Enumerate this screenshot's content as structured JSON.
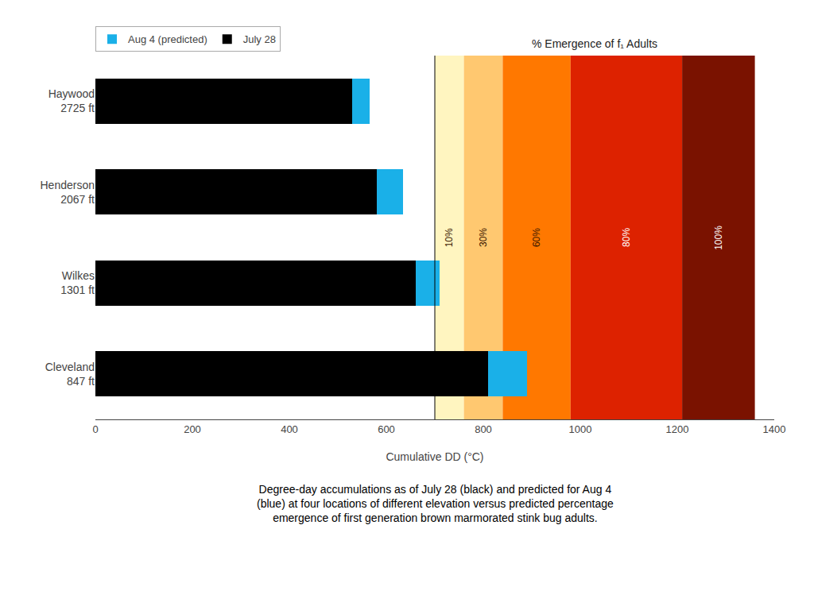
{
  "chart_data": {
    "type": "bar",
    "orientation": "horizontal",
    "stacked": true,
    "categories": [
      "Cleveland\n847 ft",
      "Wilkes\n1301 ft",
      "Henderson\n2067 ft",
      "Haywood\n2725 ft"
    ],
    "series": [
      {
        "name": "July 28",
        "color": "#000000",
        "values": [
          810,
          660,
          580,
          530
        ]
      },
      {
        "name": "Aug 4 (predicted)",
        "color": "#1ab0e8",
        "values": [
          80,
          50,
          55,
          35
        ]
      }
    ],
    "xlabel": "Cumulative DD (°C)",
    "xlim": [
      0,
      1400
    ],
    "xticks": [
      0,
      200,
      400,
      600,
      800,
      1000,
      1200,
      1400
    ],
    "grid": false,
    "legend": "upper left",
    "bands": [
      {
        "x_start": 700,
        "x_end": 760,
        "color": "#fff5c0",
        "label": "10%"
      },
      {
        "x_start": 760,
        "x_end": 840,
        "color": "#ffc870",
        "label": "30%"
      },
      {
        "x_start": 840,
        "x_end": 980,
        "color": "#ff7800",
        "label": "60%"
      },
      {
        "x_start": 980,
        "x_end": 1210,
        "color": "#dd2200",
        "label": "80%"
      },
      {
        "x_start": 1210,
        "x_end": 1360,
        "color": "#7a1200",
        "label": "100%"
      }
    ],
    "band_title": "% Emergence of f₁ Adults",
    "vline": 700,
    "caption": "Degree-day accumulations as of July 28 (black) and predicted for Aug 4\n(blue) at four locations of different elevation versus predicted percentage\nemergence of first generation brown marmorated stink bug adults."
  }
}
